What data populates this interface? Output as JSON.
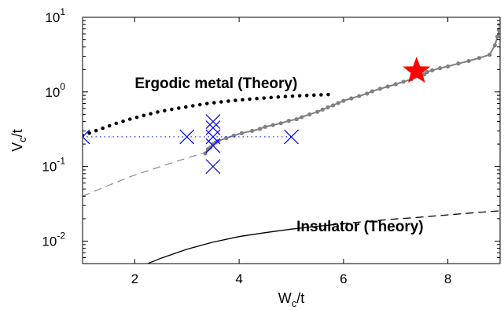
{
  "chart_data": {
    "type": "scatter",
    "title": "",
    "xlabel": {
      "base": "W",
      "sub": "c",
      "rest": "/t"
    },
    "ylabel": {
      "base": "V",
      "sub": "c",
      "rest": "/t"
    },
    "xlim": [
      1,
      9
    ],
    "ylim": [
      0.005,
      10
    ],
    "yscale": "log",
    "grid": false,
    "xticks": [
      2,
      4,
      6,
      8
    ],
    "xtick_labels": [
      "2",
      "4",
      "6",
      "8"
    ],
    "yticks": [
      0.01,
      0.1,
      1,
      10
    ],
    "ytick_labels": [
      {
        "base": "10",
        "exp": "-2"
      },
      {
        "base": "10",
        "exp": "-1"
      },
      {
        "base": "10",
        "exp": "0"
      },
      {
        "base": "10",
        "exp": "1"
      }
    ],
    "annotations": [
      {
        "text": "Ergodic metal (Theory)",
        "x": 2.0,
        "y": 1.12
      },
      {
        "text": "Insulator (Theory)",
        "x": 5.1,
        "y": 0.0135
      }
    ],
    "series": [
      {
        "style": "gray-line-dots",
        "color": "#808080",
        "x": [
          3.35,
          3.4,
          3.45,
          3.5,
          3.55,
          3.6,
          3.75,
          3.9,
          4.05,
          4.25,
          4.4,
          4.5,
          4.65,
          4.8,
          4.95,
          5.1,
          5.2,
          5.35,
          5.5,
          5.6,
          5.7,
          5.8,
          5.9,
          6.0,
          6.15,
          6.3,
          6.45,
          6.55,
          6.7,
          6.85,
          7.0,
          7.15,
          7.3,
          7.45,
          7.55,
          7.6,
          7.7,
          7.85,
          8.0,
          8.2,
          8.4,
          8.6,
          8.8,
          8.9,
          8.95,
          8.98,
          9.0
        ],
        "y": [
          0.15,
          0.17,
          0.18,
          0.2,
          0.21,
          0.22,
          0.24,
          0.26,
          0.28,
          0.3,
          0.32,
          0.34,
          0.36,
          0.38,
          0.41,
          0.43,
          0.46,
          0.5,
          0.54,
          0.58,
          0.62,
          0.66,
          0.71,
          0.76,
          0.82,
          0.88,
          0.95,
          1.02,
          1.1,
          1.18,
          1.27,
          1.37,
          1.48,
          1.6,
          1.72,
          1.85,
          1.95,
          2.08,
          2.2,
          2.4,
          2.6,
          2.85,
          3.15,
          4.2,
          5.5,
          6.8,
          8.0
        ]
      },
      {
        "style": "gray-dashed",
        "color": "#888888",
        "x": [
          1.0,
          1.5,
          2.0,
          2.5,
          3.0,
          3.3
        ],
        "y": [
          0.04,
          0.056,
          0.077,
          0.1,
          0.13,
          0.15
        ]
      },
      {
        "style": "black-dotted-theory",
        "color": "#000000",
        "x": [
          1.0,
          1.3,
          1.6,
          1.9,
          2.2,
          2.5,
          2.8,
          3.1,
          3.4,
          3.7,
          4.0,
          4.3,
          4.6,
          4.9,
          5.2,
          5.5,
          5.8
        ],
        "y": [
          0.26,
          0.31,
          0.37,
          0.43,
          0.49,
          0.55,
          0.6,
          0.65,
          0.7,
          0.74,
          0.78,
          0.81,
          0.84,
          0.87,
          0.89,
          0.91,
          0.93
        ]
      },
      {
        "style": "black-solid-theory",
        "color": "#000000",
        "x": [
          2.25,
          2.5,
          3.0,
          3.5,
          4.0,
          4.5,
          5.0,
          5.5,
          5.7
        ],
        "y": [
          0.005,
          0.0059,
          0.0078,
          0.0097,
          0.0115,
          0.013,
          0.0145,
          0.0158,
          0.0163
        ]
      },
      {
        "style": "black-dashed-theory",
        "color": "#000000",
        "x": [
          5.7,
          6.0,
          6.5,
          7.0,
          7.5,
          8.0,
          8.5,
          9.0
        ],
        "y": [
          0.0163,
          0.0172,
          0.0185,
          0.0198,
          0.021,
          0.0225,
          0.024,
          0.0255
        ]
      },
      {
        "style": "blue-dotted",
        "color": "#0000ff",
        "x": [
          1.0,
          5.0
        ],
        "y": [
          0.25,
          0.25
        ]
      },
      {
        "style": "blue-x",
        "color": "#0000ff",
        "x": [
          1.0,
          3.0,
          3.5,
          3.5,
          3.5,
          3.5,
          3.5,
          5.0
        ],
        "y": [
          0.25,
          0.25,
          0.25,
          0.1,
          0.33,
          0.4,
          0.19,
          0.25
        ]
      },
      {
        "style": "red-star",
        "color": "#ff0000",
        "x": [
          7.4
        ],
        "y": [
          1.9
        ]
      }
    ]
  }
}
